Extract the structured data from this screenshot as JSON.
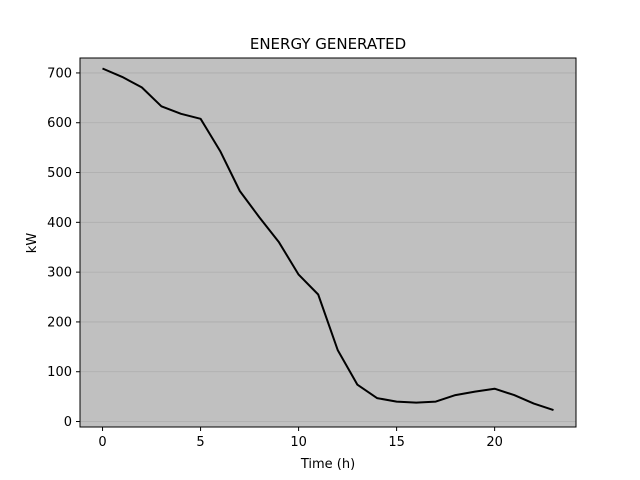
{
  "chart_data": {
    "type": "line",
    "title": "ENERGY GENERATED",
    "xlabel": "Time (h)",
    "ylabel": "kW",
    "xlim": [
      -1.15,
      24.15
    ],
    "ylim": [
      -11,
      730
    ],
    "xticks": [
      0,
      5,
      10,
      15,
      20
    ],
    "yticks": [
      0,
      100,
      200,
      300,
      400,
      500,
      600,
      700
    ],
    "grid": "horizontal",
    "plot_background": "#c0c0c0",
    "line_color": "#000000",
    "series": [
      {
        "x": [
          0,
          1,
          2,
          3,
          4,
          5,
          6,
          7,
          8,
          9,
          10,
          11,
          12,
          13,
          14,
          15,
          16,
          17,
          18,
          19,
          20,
          21,
          22,
          23
        ],
        "values": [
          709,
          692,
          671,
          633,
          618,
          608,
          543,
          463,
          410,
          360,
          295,
          255,
          143,
          74,
          47,
          40,
          38,
          40,
          53,
          60,
          66,
          53,
          36,
          23
        ]
      }
    ]
  }
}
